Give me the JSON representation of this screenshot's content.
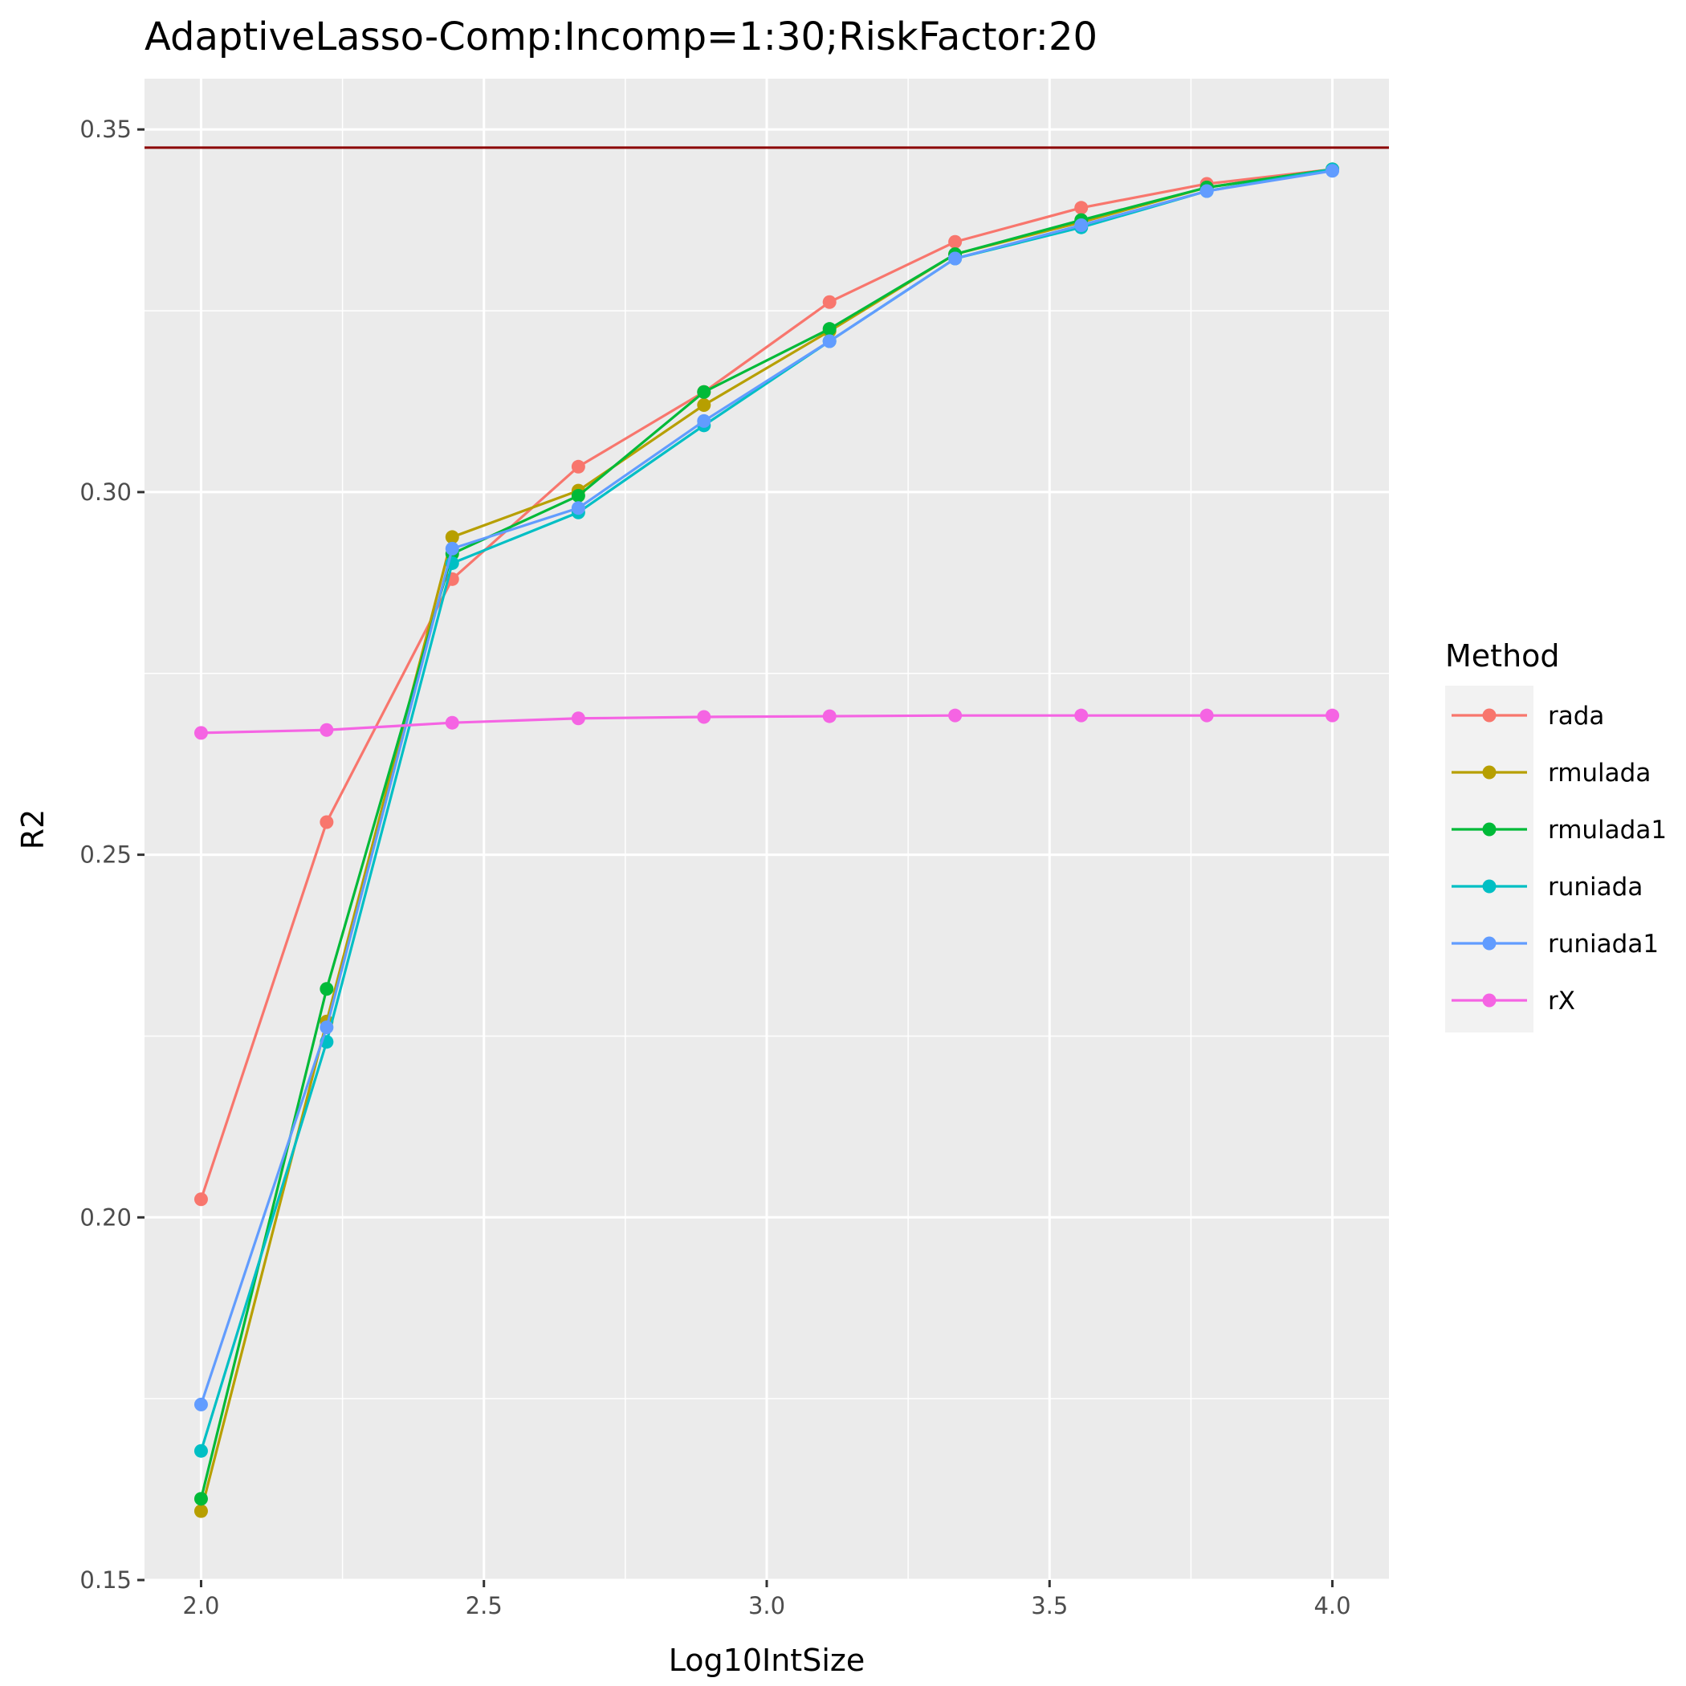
{
  "chart_data": {
    "type": "line",
    "title": "AdaptiveLasso-Comp:Incomp=1:30;RiskFactor:20",
    "xlabel": "Log10IntSize",
    "ylabel": "R2",
    "xlim": [
      1.9,
      4.1
    ],
    "ylim": [
      0.15,
      0.357
    ],
    "x_ticks": [
      2.0,
      2.5,
      3.0,
      3.5,
      4.0
    ],
    "x_tick_labels": [
      "2.0",
      "2.5",
      "3.0",
      "3.5",
      "4.0"
    ],
    "y_ticks": [
      0.15,
      0.2,
      0.25,
      0.3,
      0.35
    ],
    "y_tick_labels": [
      "0.15",
      "0.20",
      "0.25",
      "0.30",
      "0.35"
    ],
    "grid": true,
    "legend_title": "Method",
    "legend_position": "right",
    "reference_line": {
      "y": 0.3475,
      "color": "#8B0000"
    },
    "x": [
      2.0,
      2.222,
      2.444,
      2.667,
      2.889,
      3.111,
      3.333,
      3.556,
      3.778,
      4.0
    ],
    "series": [
      {
        "name": "rada",
        "color": "#F8766D",
        "values": [
          0.2025,
          0.2545,
          0.288,
          0.3035,
          0.3138,
          0.3262,
          0.3345,
          0.3392,
          0.3425,
          0.3445
        ]
      },
      {
        "name": "rmulada",
        "color": "#B79F00",
        "values": [
          0.1595,
          0.227,
          0.2938,
          0.3002,
          0.312,
          0.3222,
          0.3328,
          0.3372,
          0.342,
          0.3445
        ]
      },
      {
        "name": "rmulada1",
        "color": "#00BA38",
        "values": [
          0.1612,
          0.2315,
          0.2915,
          0.2995,
          0.3138,
          0.3225,
          0.3328,
          0.3375,
          0.342,
          0.3445
        ]
      },
      {
        "name": "runiada",
        "color": "#00BFC4",
        "values": [
          0.1678,
          0.2242,
          0.2902,
          0.2972,
          0.3092,
          0.3208,
          0.3322,
          0.3365,
          0.3415,
          0.3445
        ]
      },
      {
        "name": "runiada1",
        "color": "#619CFF",
        "values": [
          0.1742,
          0.2262,
          0.2922,
          0.2978,
          0.3098,
          0.3208,
          0.3322,
          0.3368,
          0.3415,
          0.3443
        ]
      },
      {
        "name": "rX",
        "color": "#F564E3",
        "values": [
          0.2668,
          0.2672,
          0.2682,
          0.2688,
          0.269,
          0.2691,
          0.2692,
          0.2692,
          0.2692,
          0.2692
        ]
      }
    ]
  }
}
